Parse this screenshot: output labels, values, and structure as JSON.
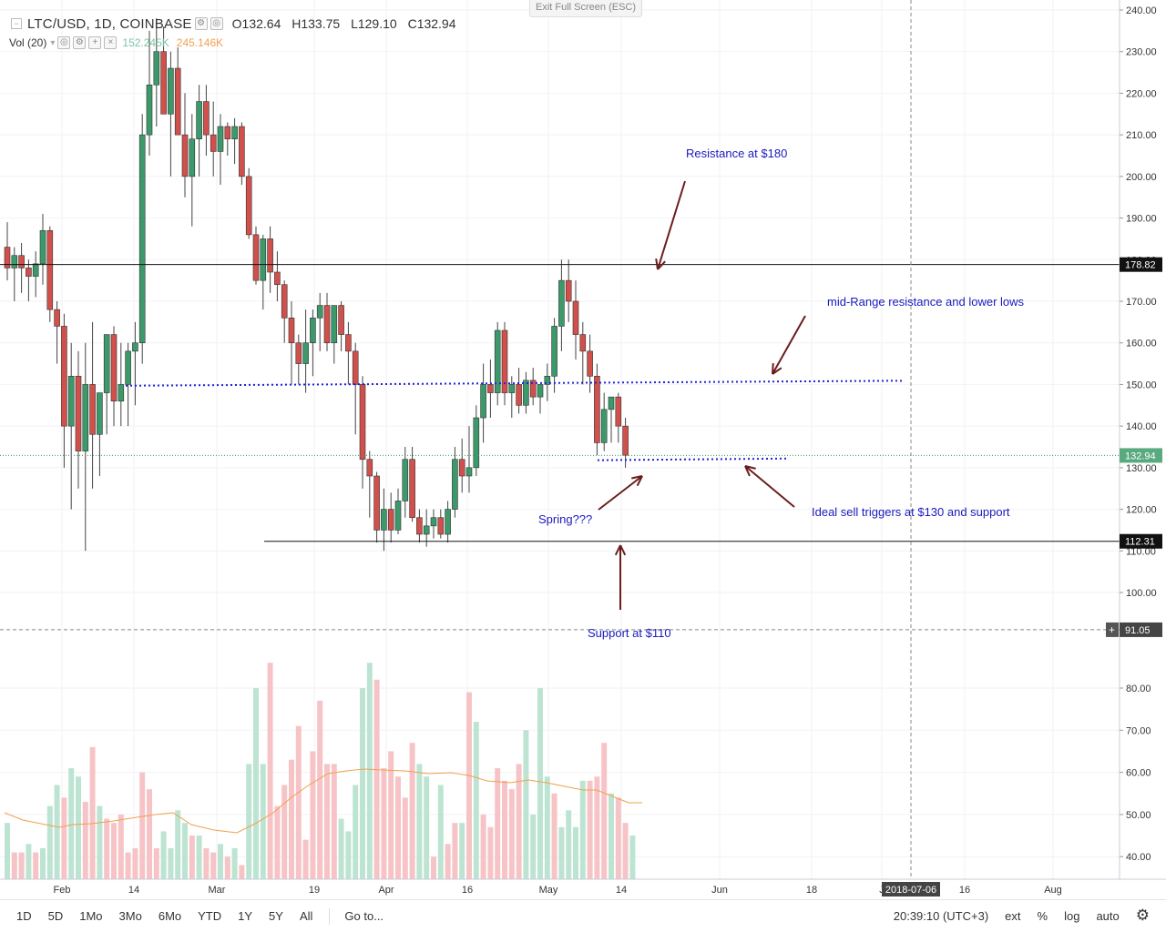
{
  "exit_button": "Exit Full Screen (ESC)",
  "header": {
    "symbol": "LTC/USD, 1D, COINBASE",
    "open": "O132.64",
    "high": "H133.75",
    "low": "L129.10",
    "close": "C132.94"
  },
  "volume_row": {
    "label": "Vol (20)",
    "value1": "152.245K",
    "value2": "245.146K"
  },
  "price_labels": {
    "resistance": "178.82",
    "current": "132.94",
    "support": "112.31",
    "dashed": "91.05"
  },
  "annotations": {
    "resistance": "Resistance at $180",
    "mid_range": "mid-Range resistance and lower lows",
    "sell": "Ideal sell triggers at $130 and support",
    "spring": "Spring???",
    "support": "Support at $110"
  },
  "time_axis": {
    "labels": [
      "Feb",
      "14",
      "Mar",
      "19",
      "Apr",
      "16",
      "May",
      "14",
      "Jun",
      "18",
      "J",
      "16",
      "Aug"
    ],
    "cursor_date": "2018-07-06"
  },
  "bottom_bar": {
    "ranges": [
      "1D",
      "5D",
      "1Mo",
      "3Mo",
      "6Mo",
      "YTD",
      "1Y",
      "5Y",
      "All"
    ],
    "goto": "Go to...",
    "time": "20:39:10 (UTC+3)",
    "ext": "ext",
    "percent": "%",
    "log": "log",
    "auto": "auto"
  },
  "colors": {
    "up": "#3c9a6a",
    "down": "#d0504c",
    "annotation_text": "#1a1abf",
    "arrow": "#6b1d1d",
    "dotted_line": "#2222dd",
    "vol_ma": "#f0a050"
  },
  "chart_data": {
    "type": "candlestick",
    "title": "LTC/USD, 1D, COINBASE",
    "price_ylim": [
      100,
      240
    ],
    "price_ticks": [
      100,
      110,
      120,
      130,
      140,
      150,
      160,
      170,
      180,
      190,
      200,
      210,
      220,
      230,
      240
    ],
    "volume_ticks": [
      40,
      50,
      60,
      70,
      80
    ],
    "horizontal_levels": [
      178.82,
      112.31
    ],
    "dotted_levels": [
      {
        "from_x": 138,
        "to_x": 990,
        "y_start": 149.7,
        "y_end": 150.9
      },
      {
        "from_x": 656,
        "to_x": 864,
        "y_start": 131.8,
        "y_end": 132.2
      }
    ],
    "candles": [
      [
        183,
        189,
        175,
        178
      ],
      [
        178,
        183,
        170,
        181
      ],
      [
        181,
        184,
        172,
        178
      ],
      [
        178,
        180,
        170,
        176
      ],
      [
        176,
        182,
        171,
        179
      ],
      [
        179,
        191,
        174,
        187
      ],
      [
        187,
        188,
        165,
        168
      ],
      [
        168,
        170,
        155,
        164
      ],
      [
        164,
        167,
        130,
        140
      ],
      [
        140,
        160,
        120,
        152
      ],
      [
        152,
        158,
        125,
        134
      ],
      [
        134,
        160,
        110,
        150
      ],
      [
        150,
        165,
        125,
        138
      ],
      [
        138,
        148,
        128,
        148
      ],
      [
        148,
        162,
        138,
        162
      ],
      [
        162,
        164,
        140,
        146
      ],
      [
        146,
        160,
        140,
        150
      ],
      [
        150,
        160,
        140,
        158
      ],
      [
        158,
        165,
        145,
        160
      ],
      [
        160,
        215,
        155,
        210
      ],
      [
        210,
        235,
        205,
        222
      ],
      [
        222,
        238,
        212,
        230
      ],
      [
        230,
        236,
        215,
        215
      ],
      [
        215,
        230,
        200,
        226
      ],
      [
        226,
        231,
        210,
        210
      ],
      [
        210,
        220,
        195,
        200
      ],
      [
        200,
        215,
        188,
        209
      ],
      [
        209,
        222,
        200,
        218
      ],
      [
        218,
        222,
        205,
        210
      ],
      [
        210,
        218,
        200,
        206
      ],
      [
        206,
        215,
        198,
        212
      ],
      [
        212,
        213,
        205,
        209
      ],
      [
        209,
        214,
        203,
        212
      ],
      [
        212,
        213,
        198,
        200
      ],
      [
        200,
        202,
        185,
        186
      ],
      [
        186,
        188,
        174,
        175
      ],
      [
        175,
        186,
        168,
        185
      ],
      [
        185,
        188,
        172,
        177
      ],
      [
        177,
        182,
        170,
        174
      ],
      [
        174,
        175,
        160,
        166
      ],
      [
        166,
        170,
        150,
        160
      ],
      [
        160,
        162,
        150,
        155
      ],
      [
        155,
        168,
        148,
        160
      ],
      [
        160,
        168,
        152,
        166
      ],
      [
        166,
        172,
        158,
        169
      ],
      [
        169,
        172,
        158,
        160
      ],
      [
        160,
        169,
        155,
        169
      ],
      [
        169,
        170,
        158,
        162
      ],
      [
        162,
        165,
        150,
        158
      ],
      [
        158,
        160,
        138,
        150
      ],
      [
        150,
        152,
        125,
        132
      ],
      [
        132,
        134,
        118,
        128
      ],
      [
        128,
        129,
        112,
        115
      ],
      [
        115,
        125,
        110,
        120
      ],
      [
        120,
        124,
        112,
        115
      ],
      [
        115,
        125,
        114,
        122
      ],
      [
        122,
        135,
        118,
        132
      ],
      [
        132,
        135,
        117,
        118
      ],
      [
        118,
        120,
        112,
        114
      ],
      [
        114,
        120,
        111,
        116
      ],
      [
        116,
        120,
        113,
        118
      ],
      [
        118,
        120,
        113,
        114
      ],
      [
        114,
        122,
        112,
        120
      ],
      [
        120,
        135,
        118,
        132
      ],
      [
        132,
        137,
        124,
        128
      ],
      [
        128,
        140,
        124,
        130
      ],
      [
        130,
        145,
        128,
        142
      ],
      [
        142,
        155,
        136,
        150
      ],
      [
        150,
        156,
        142,
        148
      ],
      [
        148,
        165,
        145,
        163
      ],
      [
        163,
        165,
        145,
        148
      ],
      [
        148,
        152,
        142,
        150
      ],
      [
        150,
        154,
        143,
        145
      ],
      [
        145,
        153,
        143,
        151
      ],
      [
        151,
        154,
        145,
        147
      ],
      [
        147,
        150,
        143,
        150
      ],
      [
        150,
        155,
        146,
        152
      ],
      [
        152,
        166,
        148,
        164
      ],
      [
        164,
        180,
        158,
        175
      ],
      [
        175,
        180,
        165,
        170
      ],
      [
        170,
        175,
        156,
        162
      ],
      [
        162,
        165,
        150,
        158
      ],
      [
        158,
        162,
        148,
        152
      ],
      [
        152,
        155,
        133,
        136
      ],
      [
        136,
        148,
        134,
        144
      ],
      [
        144,
        146,
        136,
        147
      ],
      [
        147,
        148,
        136,
        140
      ],
      [
        140,
        142,
        130,
        133
      ]
    ],
    "volumes": [
      [
        48,
        1
      ],
      [
        41,
        0
      ],
      [
        41,
        0
      ],
      [
        43,
        1
      ],
      [
        41,
        0
      ],
      [
        42,
        1
      ],
      [
        52,
        1
      ],
      [
        57,
        1
      ],
      [
        54,
        0
      ],
      [
        61,
        1
      ],
      [
        59,
        1
      ],
      [
        53,
        0
      ],
      [
        66,
        0
      ],
      [
        52,
        1
      ],
      [
        49,
        0
      ],
      [
        48,
        0
      ],
      [
        50,
        0
      ],
      [
        41,
        0
      ],
      [
        42,
        0
      ],
      [
        60,
        0
      ],
      [
        56,
        0
      ],
      [
        42,
        0
      ],
      [
        46,
        1
      ],
      [
        42,
        1
      ],
      [
        51,
        1
      ],
      [
        48,
        1
      ],
      [
        45,
        0
      ],
      [
        45,
        1
      ],
      [
        42,
        0
      ],
      [
        41,
        0
      ],
      [
        43,
        1
      ],
      [
        40,
        0
      ],
      [
        42,
        1
      ],
      [
        38,
        0
      ],
      [
        62,
        1
      ],
      [
        80,
        1
      ],
      [
        62,
        1
      ],
      [
        86,
        0
      ],
      [
        52,
        0
      ],
      [
        57,
        0
      ],
      [
        63,
        0
      ],
      [
        71,
        0
      ],
      [
        44,
        0
      ],
      [
        65,
        0
      ],
      [
        77,
        0
      ],
      [
        62,
        0
      ],
      [
        62,
        0
      ],
      [
        49,
        1
      ],
      [
        46,
        1
      ],
      [
        57,
        1
      ],
      [
        80,
        1
      ],
      [
        86,
        1
      ],
      [
        82,
        0
      ],
      [
        61,
        0
      ],
      [
        65,
        0
      ],
      [
        59,
        0
      ],
      [
        54,
        0
      ],
      [
        67,
        0
      ],
      [
        62,
        1
      ],
      [
        59,
        1
      ],
      [
        40,
        0
      ],
      [
        57,
        1
      ],
      [
        43,
        0
      ],
      [
        48,
        0
      ],
      [
        48,
        1
      ],
      [
        79,
        0
      ],
      [
        72,
        1
      ],
      [
        50,
        0
      ],
      [
        47,
        0
      ],
      [
        61,
        0
      ],
      [
        58,
        0
      ],
      [
        56,
        0
      ],
      [
        62,
        0
      ],
      [
        70,
        1
      ],
      [
        50,
        1
      ],
      [
        80,
        1
      ],
      [
        59,
        1
      ],
      [
        55,
        0
      ],
      [
        47,
        1
      ],
      [
        51,
        1
      ],
      [
        47,
        1
      ],
      [
        58,
        1
      ],
      [
        58,
        0
      ],
      [
        59,
        0
      ],
      [
        67,
        0
      ],
      [
        55,
        1
      ],
      [
        54,
        0
      ],
      [
        48,
        0
      ],
      [
        45,
        1
      ]
    ],
    "vol_ma_points": [
      [
        5,
        893
      ],
      [
        25,
        901
      ],
      [
        45,
        905
      ],
      [
        65,
        909
      ],
      [
        80,
        906
      ],
      [
        100,
        905
      ],
      [
        125,
        902
      ],
      [
        150,
        898
      ],
      [
        170,
        895
      ],
      [
        190,
        893
      ],
      [
        210,
        906
      ],
      [
        235,
        912
      ],
      [
        260,
        915
      ],
      [
        280,
        905
      ],
      [
        300,
        893
      ],
      [
        320,
        876
      ],
      [
        340,
        862
      ],
      [
        360,
        850
      ],
      [
        380,
        847
      ],
      [
        400,
        845
      ],
      [
        420,
        846
      ],
      [
        445,
        847
      ],
      [
        470,
        850
      ],
      [
        495,
        849
      ],
      [
        515,
        852
      ],
      [
        535,
        858
      ],
      [
        560,
        860
      ],
      [
        580,
        857
      ],
      [
        600,
        860
      ],
      [
        620,
        864
      ],
      [
        640,
        868
      ],
      [
        655,
        868
      ],
      [
        670,
        874
      ],
      [
        690,
        882
      ],
      [
        705,
        882
      ]
    ]
  }
}
